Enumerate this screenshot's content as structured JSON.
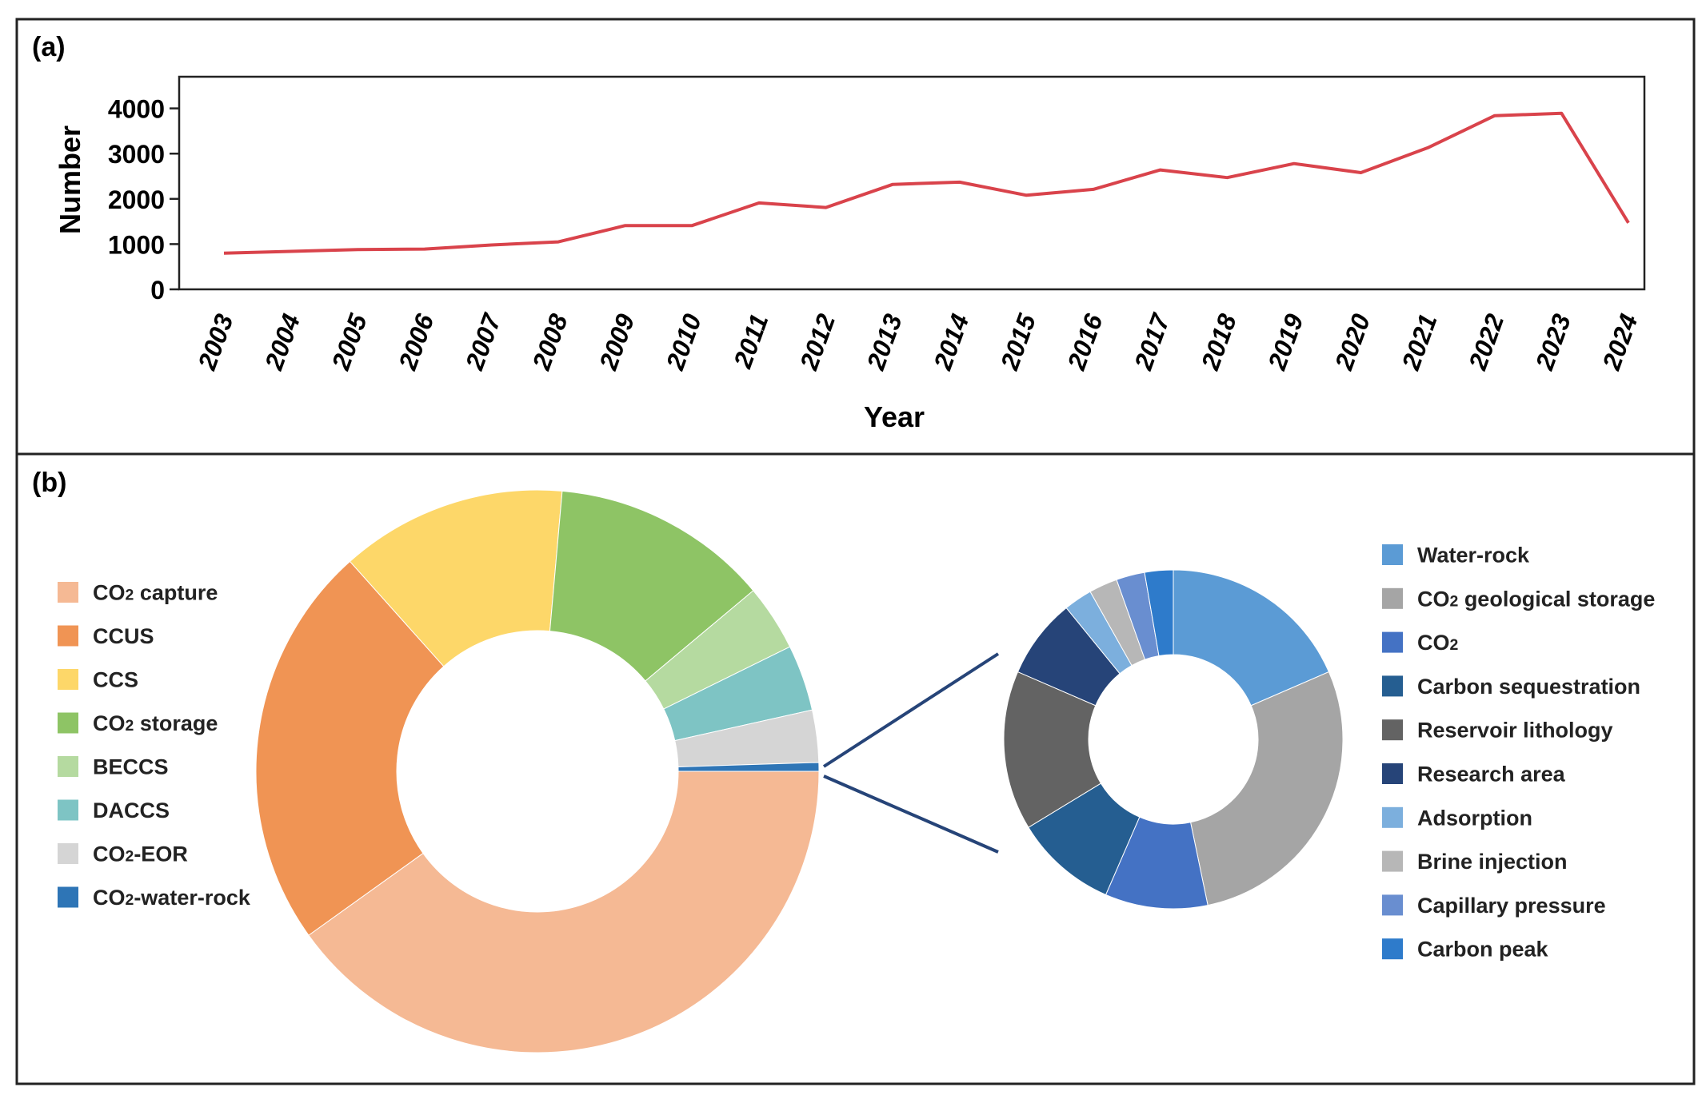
{
  "panel_a": {
    "label": "(a)",
    "chart_data": {
      "type": "line",
      "title": "",
      "xlabel": "Year",
      "ylabel": "Number",
      "ylim": [
        0,
        4700
      ],
      "yticks": [
        0,
        1000,
        2000,
        3000,
        4000
      ],
      "ytick_labels": [
        "0",
        "1000",
        "2000",
        "3000",
        "4000"
      ],
      "grid": false,
      "color": "#d9434b",
      "x": [
        "2003",
        "2004",
        "2005",
        "2006",
        "2007",
        "2008",
        "2009",
        "2010",
        "2011",
        "2012",
        "2013",
        "2014",
        "2015",
        "2016",
        "2017",
        "2018",
        "2019",
        "2020",
        "2021",
        "2022",
        "2023",
        "2024"
      ],
      "values": [
        800,
        840,
        880,
        890,
        980,
        1050,
        1410,
        1410,
        1910,
        1810,
        2320,
        2370,
        2080,
        2210,
        2640,
        2470,
        2780,
        2580,
        3130,
        3840,
        3890,
        1470
      ]
    }
  },
  "panel_b": {
    "label": "(b)",
    "chart_data": [
      {
        "type": "pie",
        "subtype": "donut",
        "title": "",
        "categories": [
          "CO₂ capture",
          "CCUS",
          "CCS",
          "CO₂ storage",
          "BECCS",
          "DACCS",
          "CO₂-EOR",
          "CO₂-water-rock"
        ],
        "legend_labels": [
          {
            "main": "CO",
            "sub": "2",
            "rest": " capture"
          },
          {
            "main": "CCUS",
            "sub": "",
            "rest": ""
          },
          {
            "main": "CCS",
            "sub": "",
            "rest": ""
          },
          {
            "main": "CO",
            "sub": "2",
            "rest": " storage"
          },
          {
            "main": "BECCS",
            "sub": "",
            "rest": ""
          },
          {
            "main": "DACCS",
            "sub": "",
            "rest": ""
          },
          {
            "main": "CO",
            "sub": "2",
            "rest": "-EOR"
          },
          {
            "main": "CO",
            "sub": "2",
            "rest": "-water-rock"
          }
        ],
        "values": [
          40.1,
          23.3,
          13.0,
          12.5,
          3.8,
          3.8,
          3.0,
          0.5
        ],
        "colors": [
          "#f5b994",
          "#f09454",
          "#fdd769",
          "#8ec465",
          "#b5daa0",
          "#7ec4c4",
          "#d5d5d5",
          "#2e75b6"
        ],
        "legend_position": "left"
      },
      {
        "type": "pie",
        "subtype": "donut",
        "title": "",
        "categories": [
          "Water-rock",
          "CO₂ geological storage",
          "CO₂",
          "Carbon sequestration",
          "Reservoir lithology",
          "Research area",
          "Adsorption",
          "Brine injection",
          "Capillary pressure",
          "Carbon peak"
        ],
        "legend_labels": [
          {
            "main": "Water-rock",
            "sub": "",
            "rest": ""
          },
          {
            "main": "CO",
            "sub": "2",
            "rest": " geological storage"
          },
          {
            "main": "CO",
            "sub": "2",
            "rest": ""
          },
          {
            "main": "Carbon sequestration",
            "sub": "",
            "rest": ""
          },
          {
            "main": "Reservoir lithology",
            "sub": "",
            "rest": ""
          },
          {
            "main": "Research area",
            "sub": "",
            "rest": ""
          },
          {
            "main": "Adsorption",
            "sub": "",
            "rest": ""
          },
          {
            "main": "Brine injection",
            "sub": "",
            "rest": ""
          },
          {
            "main": "Capillary pressure",
            "sub": "",
            "rest": ""
          },
          {
            "main": "Carbon peak",
            "sub": "",
            "rest": ""
          }
        ],
        "values": [
          17,
          26,
          9,
          9,
          14,
          7,
          2.5,
          2.5,
          2.5,
          2.5
        ],
        "colors": [
          "#5b9bd5",
          "#a5a5a5",
          "#4472c4",
          "#255e91",
          "#636363",
          "#264478",
          "#7cafdd",
          "#b7b7b7",
          "#698ed0",
          "#2e7bcb"
        ],
        "legend_position": "right"
      }
    ]
  }
}
